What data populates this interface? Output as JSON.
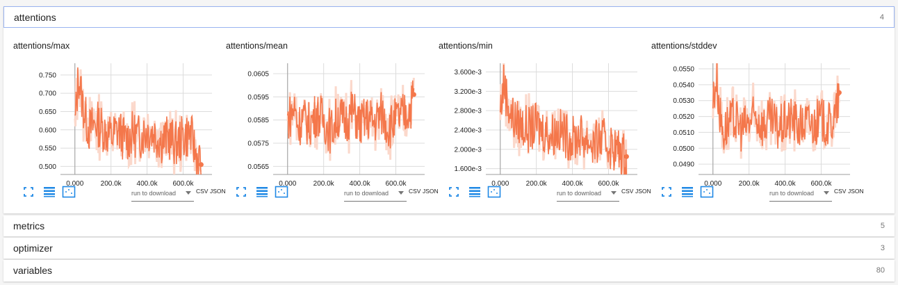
{
  "sections": [
    {
      "title": "attentions",
      "count": "4"
    },
    {
      "title": "metrics",
      "count": "5"
    },
    {
      "title": "optimizer",
      "count": "3"
    },
    {
      "title": "variables",
      "count": "80"
    }
  ],
  "toolbar": {
    "run_select": "run to download",
    "csv": "CSV",
    "json": "JSON"
  },
  "colors": {
    "line": "#f4774b",
    "band": "#fbd8cb",
    "grid": "#dcdcdc",
    "icon": "#1e88e5"
  },
  "icons": [
    "fullscreen-icon",
    "lines-icon",
    "fit-domain-icon"
  ],
  "chart_data": [
    {
      "type": "line",
      "title": "attentions/max",
      "xticks": [
        "0.000",
        "200.0k",
        "400.0k",
        "600.0k"
      ],
      "xlim": [
        -80000,
        760000
      ],
      "yticks": [
        "0.750",
        "0.700",
        "0.650",
        "0.600",
        "0.550",
        "0.500"
      ],
      "ylim": [
        0.478,
        0.782
      ],
      "series": [
        {
          "x": [
            0,
            20000,
            40000,
            60000,
            80000,
            120000,
            160000,
            200000,
            240000,
            280000,
            320000,
            360000,
            400000,
            440000,
            480000,
            520000,
            560000,
            600000,
            640000,
            680000,
            700000
          ],
          "y": [
            0.61,
            0.75,
            0.68,
            0.63,
            0.6,
            0.62,
            0.6,
            0.58,
            0.6,
            0.57,
            0.59,
            0.58,
            0.6,
            0.59,
            0.57,
            0.58,
            0.56,
            0.58,
            0.59,
            0.52,
            0.505
          ]
        }
      ]
    },
    {
      "type": "line",
      "title": "attentions/mean",
      "xticks": [
        "0.000",
        "200.0k",
        "400.0k",
        "600.0k"
      ],
      "xlim": [
        -80000,
        760000
      ],
      "yticks": [
        "0.0605",
        "0.0595",
        "0.0585",
        "0.0575",
        "0.0565"
      ],
      "ylim": [
        0.05615,
        0.06095
      ],
      "series": [
        {
          "x": [
            0,
            20000,
            40000,
            60000,
            80000,
            120000,
            160000,
            200000,
            240000,
            280000,
            320000,
            360000,
            400000,
            440000,
            480000,
            520000,
            560000,
            600000,
            640000,
            680000,
            700000
          ],
          "y": [
            0.0585,
            0.0588,
            0.059,
            0.0582,
            0.0586,
            0.0583,
            0.0588,
            0.0585,
            0.058,
            0.0587,
            0.0584,
            0.0589,
            0.0583,
            0.0586,
            0.0584,
            0.0588,
            0.0582,
            0.0585,
            0.0587,
            0.059,
            0.0596
          ]
        }
      ]
    },
    {
      "type": "line",
      "title": "attentions/min",
      "xticks": [
        "0.000",
        "200.0k",
        "400.0k",
        "600.0k"
      ],
      "xlim": [
        -80000,
        760000
      ],
      "yticks": [
        "3.600e-3",
        "3.200e-3",
        "2.800e-3",
        "2.400e-3",
        "2.000e-3",
        "1.600e-3"
      ],
      "ylim": [
        0.00148,
        0.00378
      ],
      "series": [
        {
          "x": [
            0,
            20000,
            40000,
            60000,
            80000,
            120000,
            160000,
            200000,
            240000,
            280000,
            320000,
            360000,
            400000,
            440000,
            480000,
            520000,
            560000,
            600000,
            640000,
            680000,
            700000
          ],
          "y": [
            0.0028,
            0.0034,
            0.003,
            0.0027,
            0.0026,
            0.0025,
            0.0024,
            0.0025,
            0.0024,
            0.0023,
            0.0024,
            0.0023,
            0.0022,
            0.0023,
            0.0022,
            0.0021,
            0.0022,
            0.0021,
            0.002,
            0.0019,
            0.00185
          ]
        }
      ]
    },
    {
      "type": "line",
      "title": "attentions/stddev",
      "xticks": [
        "0.000",
        "200.0k",
        "400.0k",
        "600.0k"
      ],
      "xlim": [
        -80000,
        760000
      ],
      "yticks": [
        "0.0550",
        "0.0540",
        "0.0530",
        "0.0520",
        "0.0510",
        "0.0500",
        "0.0490"
      ],
      "ylim": [
        0.04835,
        0.05535
      ],
      "series": [
        {
          "x": [
            0,
            20000,
            40000,
            60000,
            80000,
            120000,
            160000,
            200000,
            240000,
            280000,
            320000,
            360000,
            400000,
            440000,
            480000,
            520000,
            560000,
            600000,
            640000,
            680000,
            700000
          ],
          "y": [
            0.053,
            0.0545,
            0.052,
            0.051,
            0.0515,
            0.0518,
            0.0512,
            0.0516,
            0.052,
            0.0514,
            0.0518,
            0.0512,
            0.0516,
            0.0519,
            0.0513,
            0.0517,
            0.0515,
            0.0518,
            0.0514,
            0.052,
            0.0535
          ]
        }
      ]
    }
  ]
}
